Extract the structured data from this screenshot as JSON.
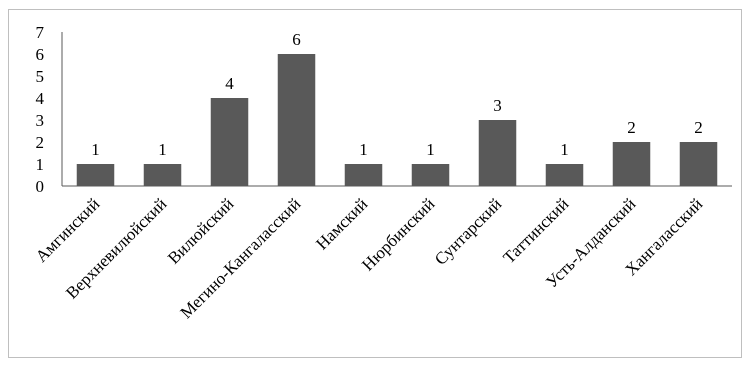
{
  "chart_data": {
    "type": "bar",
    "categories": [
      "Амгинский",
      "Верхневилюйский",
      "Вилюйский",
      "Мегино-Кангаласский",
      "Намский",
      "Нюрбинский",
      "Сунтарский",
      "Таттинский",
      "Усть-Алданский",
      "Хангаласский"
    ],
    "values": [
      1,
      1,
      4,
      6,
      1,
      1,
      3,
      1,
      2,
      2
    ],
    "title": "",
    "xlabel": "",
    "ylabel": "",
    "ylim": [
      0,
      7
    ],
    "yticks": [
      0,
      1,
      2,
      3,
      4,
      5,
      6,
      7
    ],
    "grid": false,
    "legend": "none",
    "bar_color": "#595959",
    "axis_color": "#595959"
  }
}
